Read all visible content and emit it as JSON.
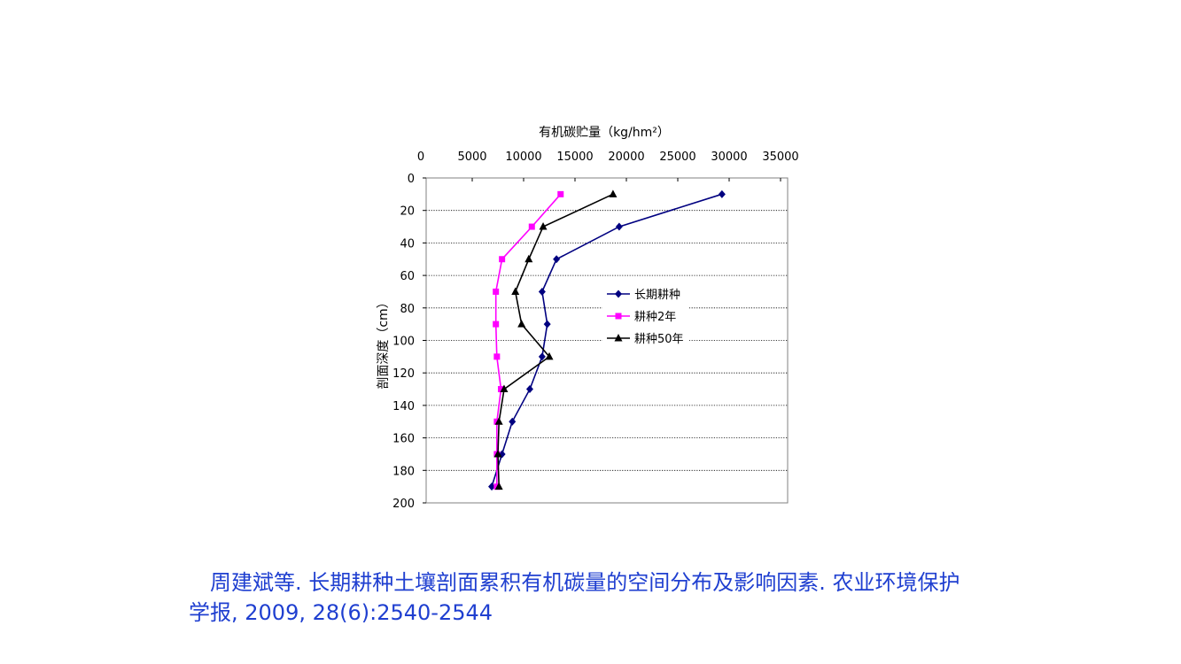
{
  "chart_data": {
    "type": "line",
    "x_axis_title": "有机碳贮量（kg/hm²）",
    "y_axis_title": "剖面深度（cm）",
    "x_ticks": [
      "0",
      "5000",
      "10000",
      "15000",
      "20000",
      "25000",
      "30000",
      "35000"
    ],
    "y_ticks": [
      "0",
      "20",
      "40",
      "60",
      "80",
      "100",
      "120",
      "140",
      "160",
      "180",
      "200"
    ],
    "xlim": [
      0,
      35000
    ],
    "ylim": [
      0,
      200
    ],
    "y_inverted": true,
    "x_axis_position": "top",
    "grid": "horizontal-dotted",
    "legend_position": "center-right",
    "series": [
      {
        "name": "长期耕种",
        "marker": "diamond",
        "color": "#000080",
        "x": [
          29300,
          19300,
          13200,
          11800,
          12300,
          11800,
          10600,
          8900,
          7900,
          6900
        ],
        "y": [
          10,
          30,
          50,
          70,
          90,
          110,
          130,
          150,
          170,
          190
        ]
      },
      {
        "name": "耕种2年",
        "marker": "square",
        "color": "#ff00ff",
        "x": [
          13600,
          10800,
          7900,
          7300,
          7300,
          7400,
          7800,
          7400,
          7400,
          7400
        ],
        "y": [
          10,
          30,
          50,
          70,
          90,
          110,
          130,
          150,
          170,
          190
        ]
      },
      {
        "name": "耕种50年",
        "marker": "triangle",
        "color": "#000000",
        "x": [
          18700,
          11900,
          10500,
          9200,
          9800,
          12500,
          8100,
          7600,
          7500,
          7600
        ],
        "y": [
          10,
          30,
          50,
          70,
          90,
          110,
          130,
          150,
          170,
          190
        ]
      }
    ]
  },
  "citation": "周建斌等. 长期耕种土壤剖面累积有机碳量的空间分布及影响因素. 农业环境保护学报, 2009, 28(6):2540-2544"
}
